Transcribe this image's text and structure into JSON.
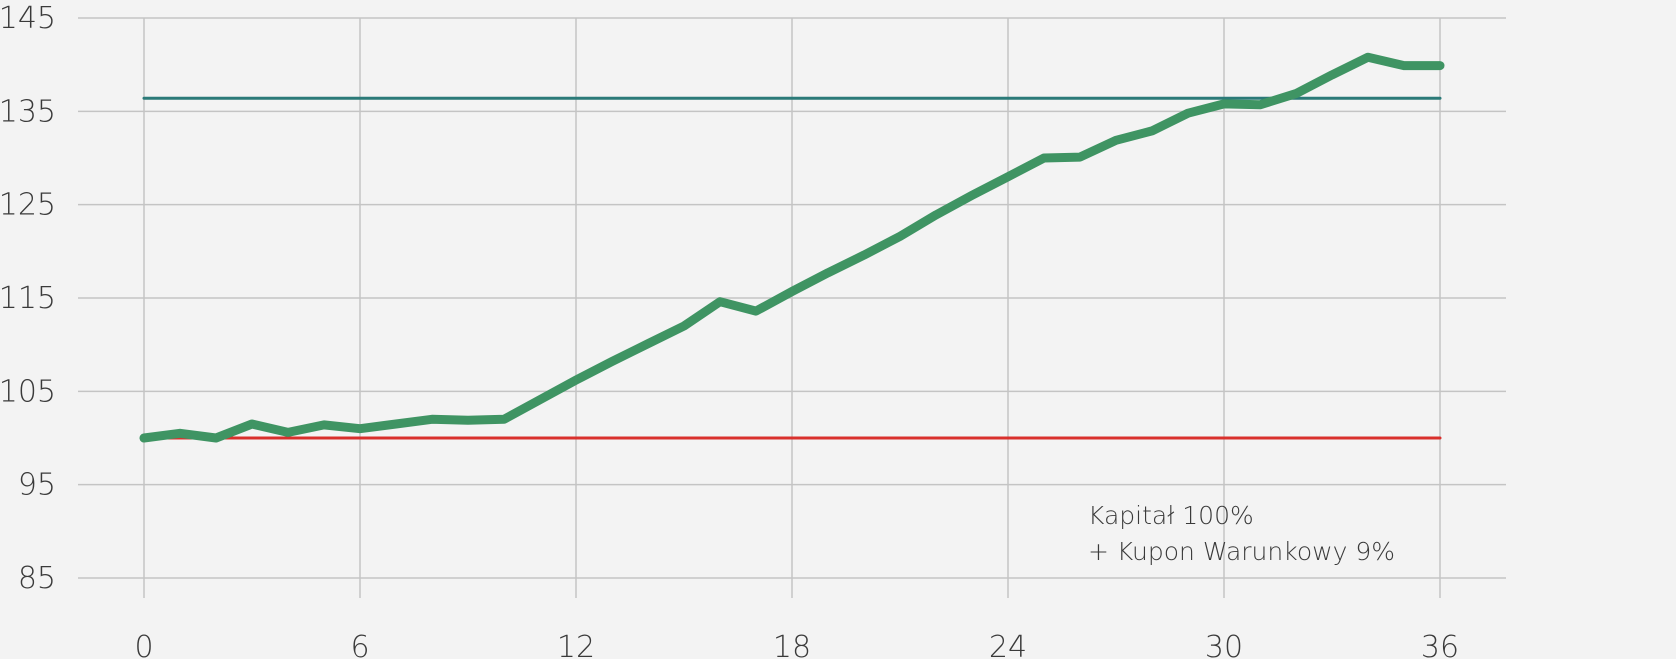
{
  "chart_data": {
    "type": "line",
    "title": "",
    "xlabel": "",
    "ylabel": "",
    "xlim": [
      0,
      36
    ],
    "ylim": [
      85,
      145
    ],
    "x_ticks": [
      0,
      6,
      12,
      18,
      24,
      30,
      36
    ],
    "y_ticks": [
      85,
      95,
      105,
      115,
      125,
      135,
      145
    ],
    "grid": true,
    "legend": "none",
    "annotation": [
      "Kapitał 100%",
      "+ Kupon Warunkowy 9%"
    ],
    "series": [
      {
        "name": "",
        "color": "#3f9463",
        "x": [
          0,
          1,
          2,
          3,
          4,
          5,
          6,
          7,
          8,
          9,
          10,
          11,
          12,
          13,
          14,
          15,
          16,
          17,
          18,
          19,
          20,
          21,
          22,
          23,
          24,
          25,
          26,
          27,
          28,
          29,
          30,
          31,
          32,
          33,
          34,
          35,
          36
        ],
        "y": [
          100,
          100.5,
          100,
          101.5,
          100.6,
          101.4,
          101,
          101.5,
          102,
          101.9,
          102,
          104.1,
          106.2,
          108.2,
          110.1,
          112,
          114.6,
          113.6,
          115.7,
          117.7,
          119.6,
          121.6,
          123.9,
          126,
          128,
          130,
          130.1,
          131.9,
          132.9,
          134.8,
          135.8,
          135.7,
          136.9,
          138.9,
          140.8,
          139.9,
          139.9
        ]
      },
      {
        "name": "",
        "color": "#2b7a78",
        "x": [
          0,
          36
        ],
        "y": [
          136.4,
          136.4
        ]
      },
      {
        "name": "",
        "color": "#d9302c",
        "x": [
          0,
          36
        ],
        "y": [
          100,
          100
        ]
      }
    ]
  }
}
